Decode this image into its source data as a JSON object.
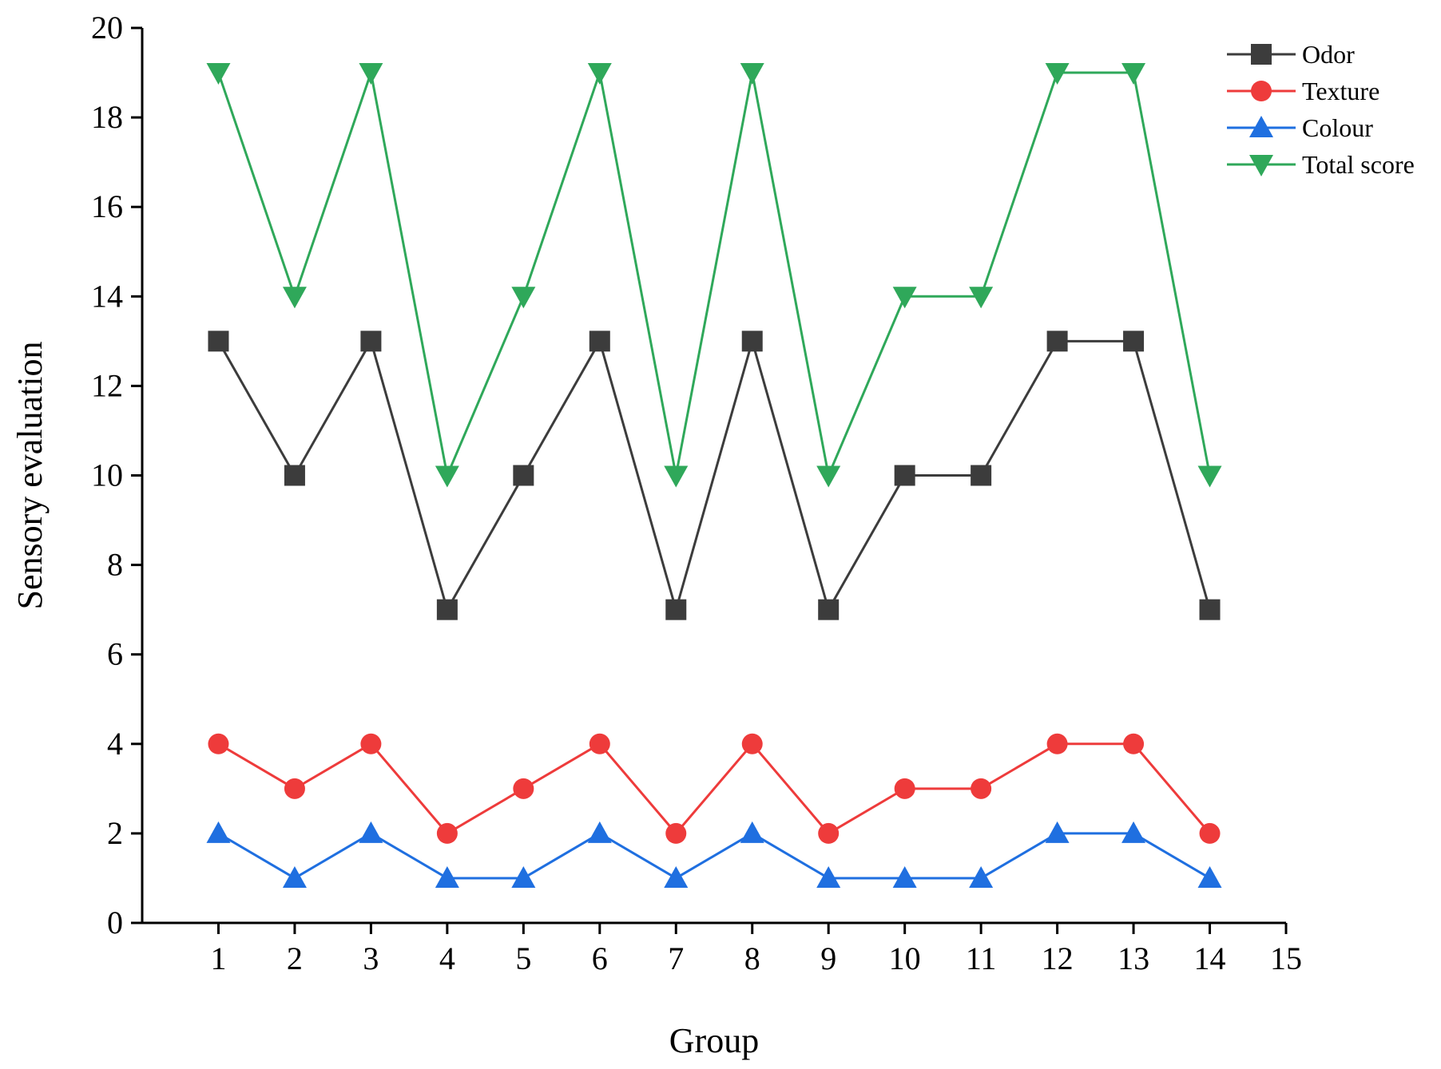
{
  "chart_data": {
    "type": "line",
    "title": "",
    "xlabel": "Group",
    "ylabel": "Sensory evaluation",
    "xlim": [
      0,
      15
    ],
    "ylim": [
      0,
      20
    ],
    "x_ticks": [
      1,
      2,
      3,
      4,
      5,
      6,
      7,
      8,
      9,
      10,
      11,
      12,
      13,
      14,
      15
    ],
    "y_ticks": [
      0,
      2,
      4,
      6,
      8,
      10,
      12,
      14,
      16,
      18,
      20
    ],
    "x": [
      1,
      2,
      3,
      4,
      5,
      6,
      7,
      8,
      9,
      10,
      11,
      12,
      13,
      14
    ],
    "grid": false,
    "legend_position": "top-right",
    "series": [
      {
        "name": "Odor",
        "color": "#3c3c3c",
        "marker": "square",
        "values": [
          13,
          10,
          13,
          7,
          10,
          13,
          7,
          13,
          7,
          10,
          10,
          13,
          13,
          7
        ]
      },
      {
        "name": "Texture",
        "color": "#ee3b3b",
        "marker": "circle",
        "values": [
          4,
          3,
          4,
          2,
          3,
          4,
          2,
          4,
          2,
          3,
          3,
          4,
          4,
          2
        ]
      },
      {
        "name": "Colour",
        "color": "#1f6fe0",
        "marker": "triangle-up",
        "values": [
          2,
          1,
          2,
          1,
          1,
          2,
          1,
          2,
          1,
          1,
          1,
          2,
          2,
          1
        ]
      },
      {
        "name": "Total score",
        "color": "#2fa85a",
        "marker": "triangle-down",
        "values": [
          19,
          14,
          19,
          10,
          14,
          19,
          10,
          19,
          10,
          14,
          14,
          19,
          19,
          10
        ]
      }
    ]
  }
}
